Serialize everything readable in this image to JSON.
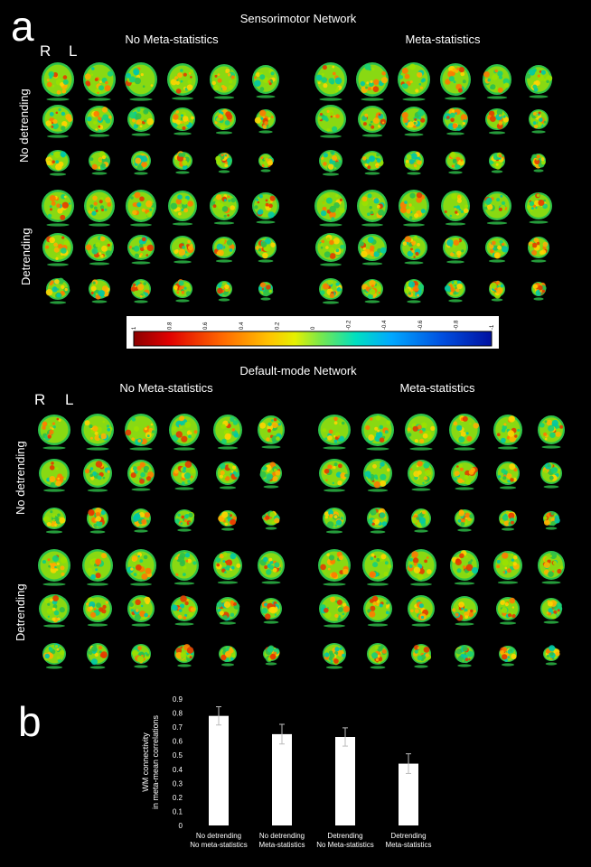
{
  "panel_a": {
    "letter": "a",
    "networks": [
      {
        "title": "Sensorimotor Network",
        "left_label": "R",
        "right_label": "L",
        "columns": [
          "No Meta-statistics",
          "Meta-statistics"
        ],
        "rows": [
          "No detrending",
          "Detrending"
        ]
      },
      {
        "title": "Default-mode Network",
        "left_label": "R",
        "right_label": "L",
        "columns": [
          "No Meta-statistics",
          "Meta-statistics"
        ],
        "rows": [
          "No detrending",
          "Detrending"
        ]
      }
    ],
    "colorbar": {
      "ticks": [
        "1",
        "0.8",
        "0.6",
        "0.4",
        "0.2",
        "0",
        "-0.2",
        "-0.4",
        "-0.6",
        "-0.8",
        "-1"
      ],
      "colors": [
        "#8b0000",
        "#e00000",
        "#ff6a00",
        "#ffc400",
        "#e6f000",
        "#7be84a",
        "#00e0c0",
        "#00a8ff",
        "#0050e0",
        "#0010a0"
      ]
    }
  },
  "panel_b": {
    "letter": "b",
    "chart_data": {
      "type": "bar",
      "ylabel": "WM connectivity\nin meta-mean correlations",
      "ylim": [
        0,
        0.9
      ],
      "yticks": [
        0,
        0.1,
        0.2,
        0.3,
        0.4,
        0.5,
        0.6,
        0.7,
        0.8,
        0.9
      ],
      "ytick_labels": [
        "0",
        "0.1",
        "0.2",
        "0.3",
        "0.4",
        "0.5",
        "0.6",
        "0.7",
        "0.8",
        "0.9"
      ],
      "categories": [
        "No detrending\nNo meta-statistics",
        "No detrending\nMeta-statistics",
        "Detrending\nNo Meta-statistics",
        "Detrending\nMeta-statistics"
      ],
      "values": [
        0.78,
        0.65,
        0.63,
        0.44
      ],
      "errors": [
        0.065,
        0.07,
        0.065,
        0.07
      ],
      "bar_color": "#ffffff"
    }
  }
}
